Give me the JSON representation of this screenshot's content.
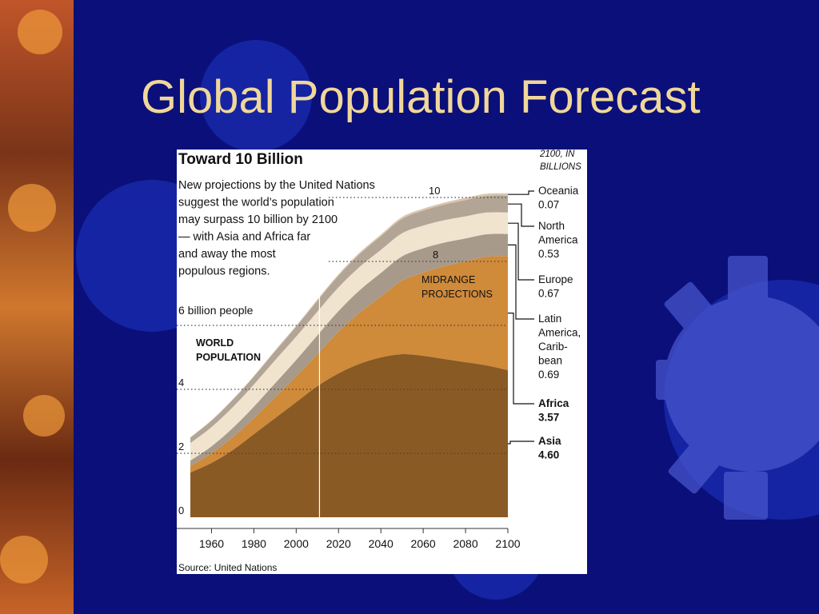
{
  "slide": {
    "title": "Global Population Forecast"
  },
  "colors": {
    "background": "#0a0f7a",
    "title": "#f0d79a",
    "asia": "#8a5a25",
    "africa": "#cf8a3a",
    "latin_america": "#a89a8a",
    "europe": "#f0e4cf",
    "north_america": "#b3a596",
    "oceania": "#d9c6ae"
  },
  "chart_data": {
    "type": "area",
    "stacked": true,
    "title": "Toward 10 Billion",
    "description_lines": [
      "New projections by the United Nations",
      "suggest the world’s population",
      "may surpass 10 billion by 2100",
      "— with Asia and Africa far",
      "and away the most",
      "populous regions."
    ],
    "world_label_lines": [
      "WORLD",
      "POPULATION"
    ],
    "projection_label_lines": [
      "MIDRANGE",
      "PROJECTIONS"
    ],
    "six_billion_label": "6 billion people",
    "legend_header_lines": [
      "2100, IN",
      "BILLIONS"
    ],
    "source": "Source: United Nations",
    "xlim": [
      1950,
      2100
    ],
    "ylim": [
      0,
      11
    ],
    "x_ticks": [
      "1960",
      "1980",
      "2000",
      "2020",
      "2040",
      "2060",
      "2080",
      "2100"
    ],
    "x_tick_values": [
      1960,
      1980,
      2000,
      2020,
      2040,
      2060,
      2080,
      2100
    ],
    "y_ticks": [
      {
        "value": 0,
        "label": "0"
      },
      {
        "value": 2,
        "label": "2"
      },
      {
        "value": 4,
        "label": "4"
      },
      {
        "value": 8,
        "label": "8"
      },
      {
        "value": 10,
        "label": "10"
      }
    ],
    "reference_lines": [
      2,
      4,
      6,
      8,
      10
    ],
    "divider_year": 2011,
    "x": [
      1950,
      1960,
      1970,
      1980,
      1990,
      2000,
      2010,
      2020,
      2030,
      2040,
      2050,
      2060,
      2070,
      2080,
      2090,
      2100
    ],
    "series": [
      {
        "name": "Asia",
        "value_2100": "4.60",
        "color_key": "asia",
        "values": [
          1.4,
          1.7,
          2.1,
          2.6,
          3.1,
          3.6,
          4.1,
          4.5,
          4.8,
          5.0,
          5.1,
          5.05,
          4.95,
          4.85,
          4.75,
          4.6
        ]
      },
      {
        "name": "Africa",
        "value_2100": "3.57",
        "color_key": "africa",
        "values": [
          0.2,
          0.3,
          0.4,
          0.5,
          0.65,
          0.8,
          1.0,
          1.3,
          1.6,
          1.9,
          2.3,
          2.6,
          2.9,
          3.15,
          3.4,
          3.57
        ]
      },
      {
        "name": "Latin America, Carib-bean",
        "value_2100": "0.69",
        "color_key": "latin_america",
        "values": [
          0.17,
          0.22,
          0.29,
          0.36,
          0.44,
          0.52,
          0.59,
          0.65,
          0.7,
          0.74,
          0.76,
          0.76,
          0.74,
          0.72,
          0.7,
          0.69
        ]
      },
      {
        "name": "Europe",
        "value_2100": "0.67",
        "color_key": "europe",
        "values": [
          0.55,
          0.6,
          0.65,
          0.69,
          0.72,
          0.73,
          0.74,
          0.74,
          0.73,
          0.72,
          0.72,
          0.71,
          0.7,
          0.69,
          0.68,
          0.67
        ]
      },
      {
        "name": "North America",
        "value_2100": "0.53",
        "color_key": "north_america",
        "values": [
          0.17,
          0.2,
          0.23,
          0.25,
          0.28,
          0.31,
          0.34,
          0.37,
          0.4,
          0.43,
          0.45,
          0.47,
          0.49,
          0.51,
          0.52,
          0.53
        ]
      },
      {
        "name": "Oceania",
        "value_2100": "0.07",
        "color_key": "oceania",
        "values": [
          0.01,
          0.02,
          0.02,
          0.02,
          0.03,
          0.03,
          0.04,
          0.04,
          0.05,
          0.05,
          0.06,
          0.06,
          0.06,
          0.07,
          0.07,
          0.07
        ]
      }
    ],
    "legend": [
      {
        "lines": [
          "Oceania",
          "0.07"
        ],
        "bold": false
      },
      {
        "lines": [
          "North",
          "America",
          "0.53"
        ],
        "bold": false
      },
      {
        "lines": [
          "Europe",
          "0.67"
        ],
        "bold": false
      },
      {
        "lines": [
          "Latin",
          "America,",
          "Carib-",
          "bean",
          "0.69"
        ],
        "bold": false
      },
      {
        "lines": [
          "Africa",
          "3.57"
        ],
        "bold": true
      },
      {
        "lines": [
          "Asia",
          "4.60"
        ],
        "bold": true
      }
    ]
  }
}
